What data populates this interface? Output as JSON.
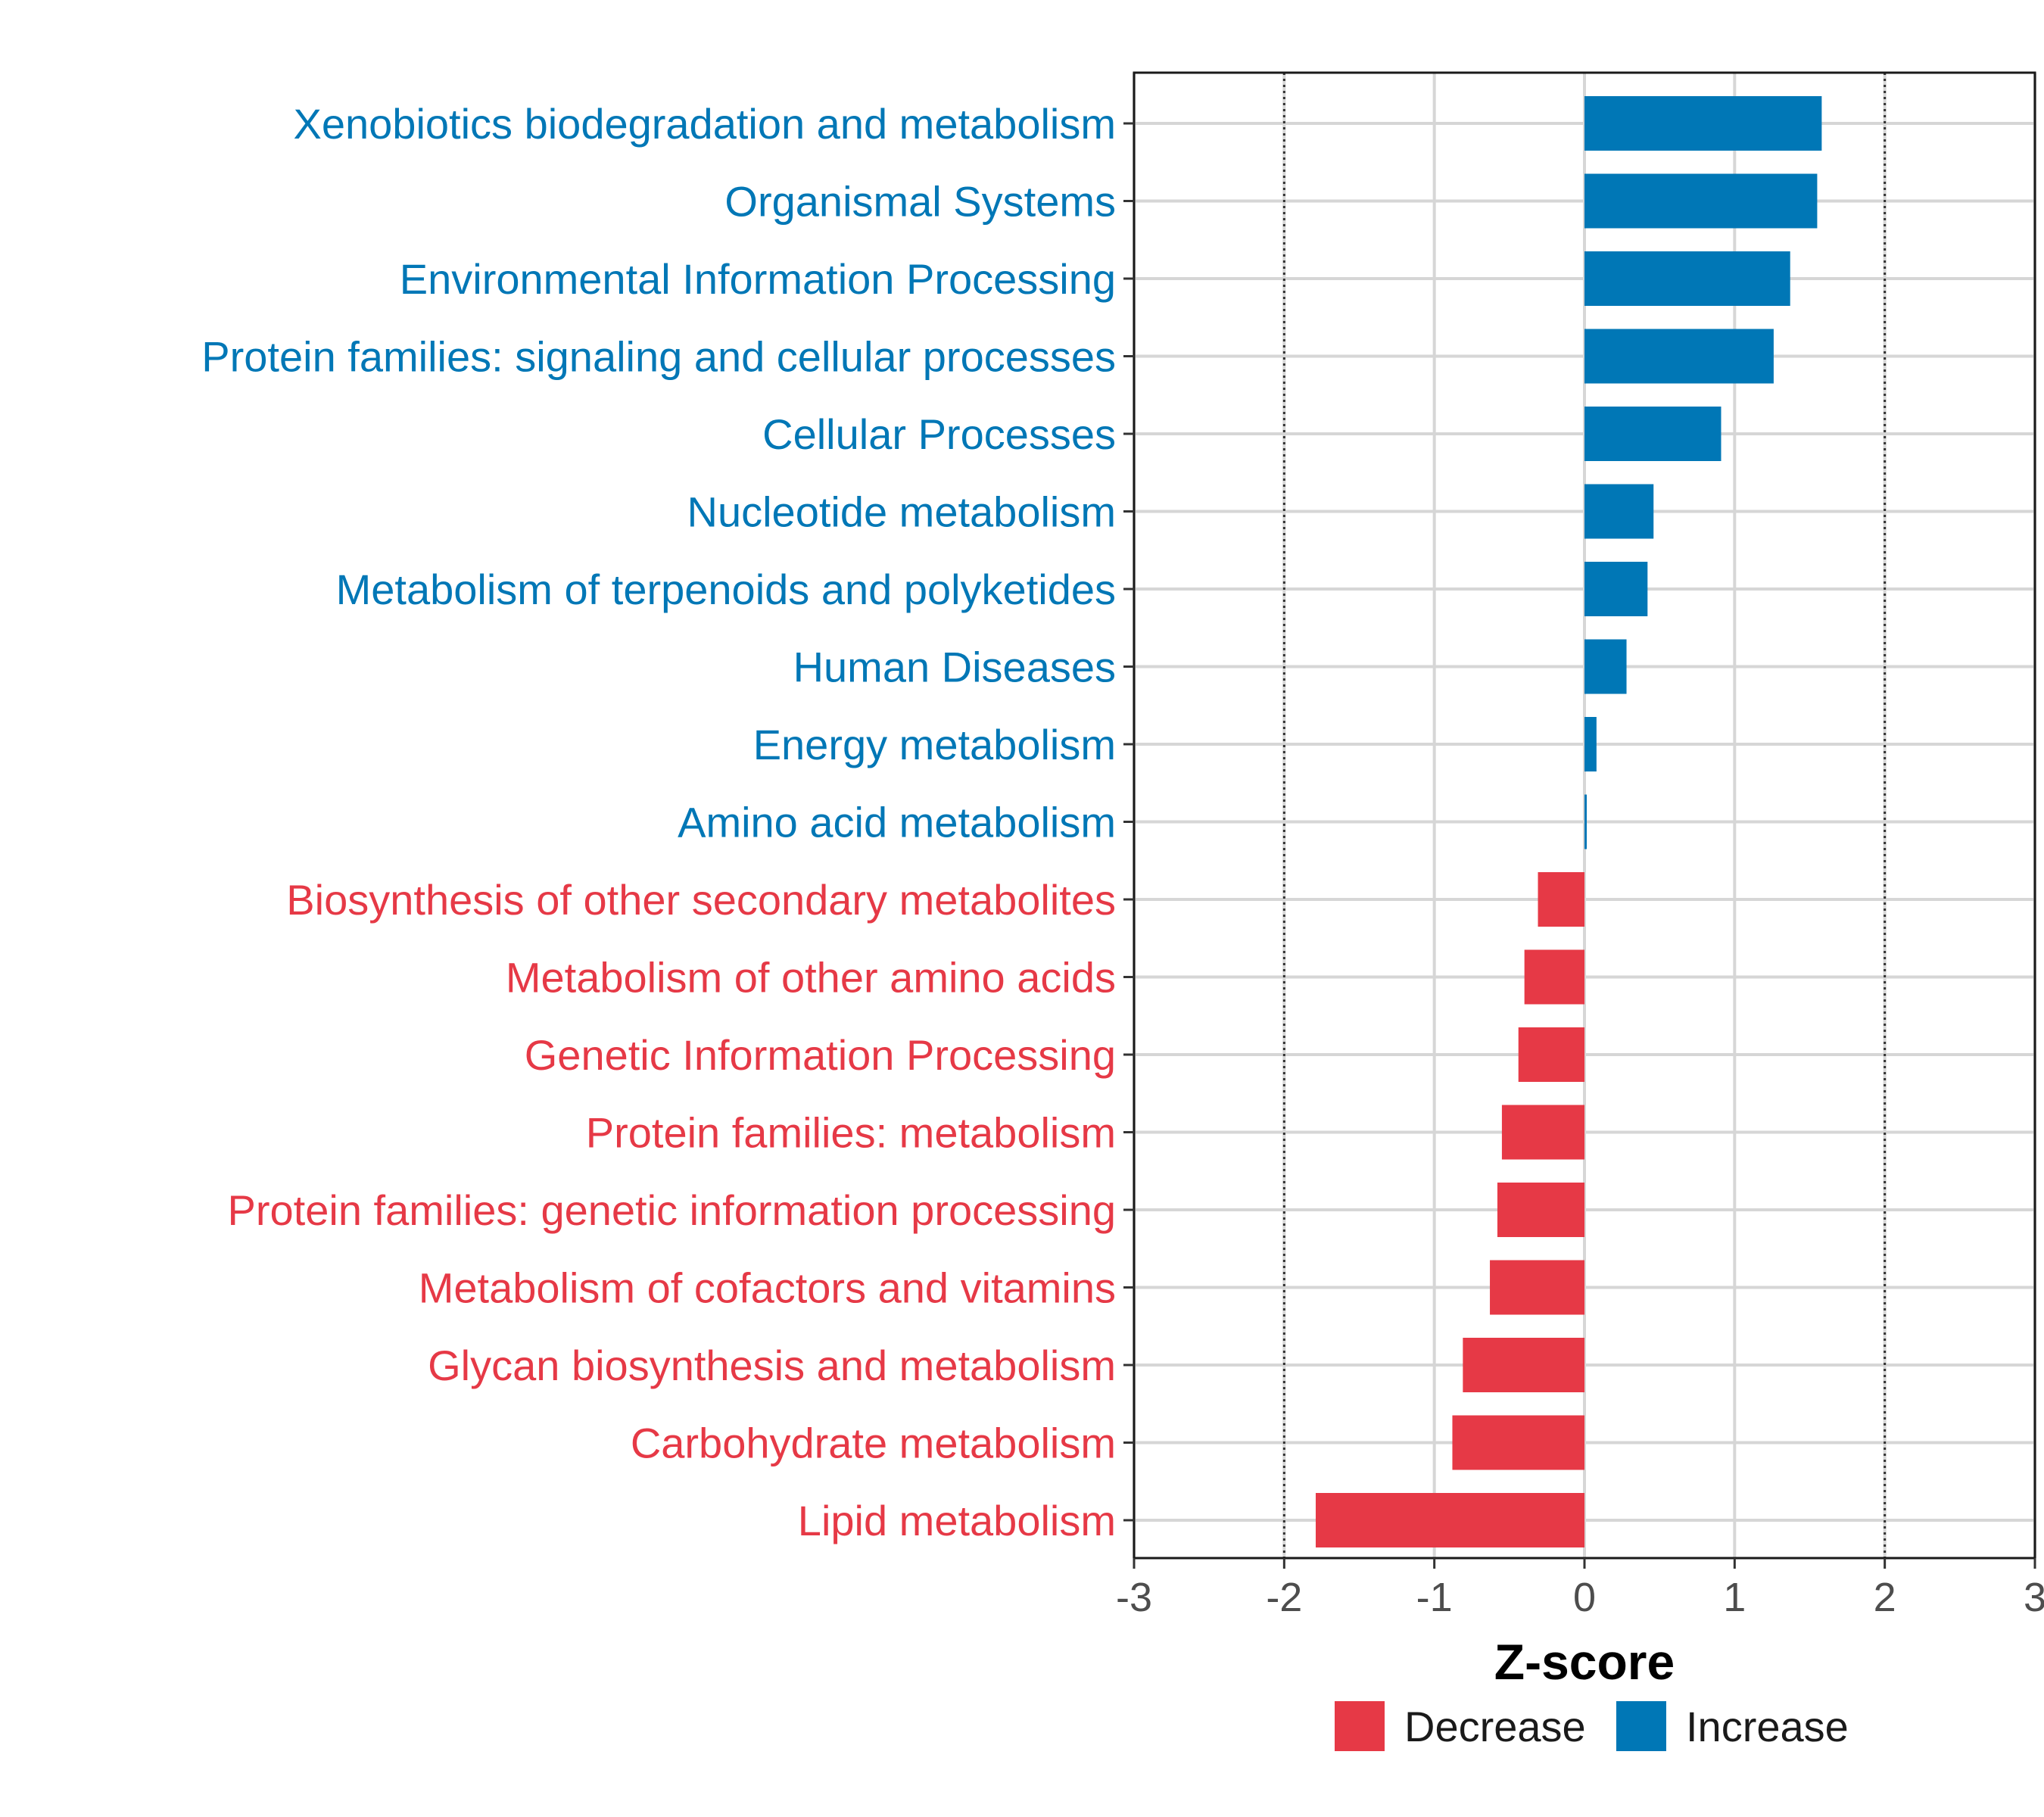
{
  "chart_data": {
    "type": "bar",
    "orientation": "horizontal",
    "title": "",
    "xlabel": "Z-score",
    "ylabel": "",
    "xlim": [
      -3,
      3
    ],
    "x_ticks": [
      -3,
      -2,
      -1,
      0,
      1,
      2,
      3
    ],
    "reference_lines": [
      -2,
      2
    ],
    "grid": true,
    "legend_position": "bottom",
    "legend": [
      {
        "name": "Decrease",
        "color": "#E63946"
      },
      {
        "name": "Increase",
        "color": "#0077B6"
      }
    ],
    "categories": [
      "Xenobiotics biodegradation and metabolism",
      "Organismal Systems",
      "Environmental Information Processing",
      "Protein families: signaling and cellular processes",
      "Cellular Processes",
      "Nucleotide metabolism",
      "Metabolism of terpenoids and polyketides",
      "Human Diseases",
      "Energy metabolism",
      "Amino acid metabolism",
      "Biosynthesis of other secondary metabolites",
      "Metabolism of other amino acids",
      "Genetic Information Processing",
      "Protein families: metabolism",
      "Protein families: genetic information processing",
      "Metabolism of cofactors and vitamins",
      "Glycan biosynthesis and metabolism",
      "Carbohydrate metabolism",
      "Lipid metabolism"
    ],
    "values": [
      1.58,
      1.55,
      1.37,
      1.26,
      0.91,
      0.46,
      0.42,
      0.28,
      0.08,
      0.01,
      -0.31,
      -0.4,
      -0.44,
      -0.55,
      -0.58,
      -0.63,
      -0.81,
      -0.88,
      -1.79
    ],
    "groups": [
      "Increase",
      "Increase",
      "Increase",
      "Increase",
      "Increase",
      "Increase",
      "Increase",
      "Increase",
      "Increase",
      "Increase",
      "Decrease",
      "Decrease",
      "Decrease",
      "Decrease",
      "Decrease",
      "Decrease",
      "Decrease",
      "Decrease",
      "Decrease"
    ]
  }
}
